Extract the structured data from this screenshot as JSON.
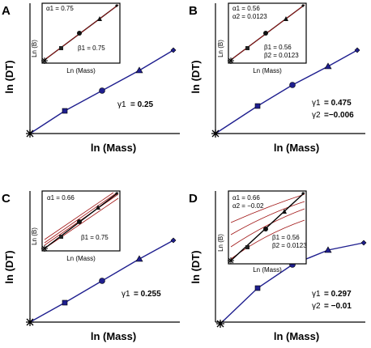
{
  "colors": {
    "main_line": "#1f1f8f",
    "inset_line": "#000000",
    "inset_fan": "#a01414",
    "axis": "#000000"
  },
  "panels": [
    {
      "id": "A",
      "letter": "A",
      "ylabel": "ln (DT)",
      "xlabel": "ln (Mass)",
      "gamma1_sym": "γ1",
      "gamma1_val": "=  0.25",
      "gamma2_sym": "",
      "gamma2_val": "",
      "inset": {
        "ylabel": "Ln (B)",
        "xlabel": "Ln (Mass)",
        "alpha1": "α1 = 0.75",
        "alpha2": "",
        "beta1": "β1 =  0.75",
        "beta2": "",
        "fan": "none"
      }
    },
    {
      "id": "B",
      "letter": "B",
      "ylabel": "ln (DT)",
      "xlabel": "ln (Mass)",
      "gamma1_sym": "γ1",
      "gamma1_val": "=  0.475",
      "gamma2_sym": "γ2",
      "gamma2_val": "=−0.006",
      "inset": {
        "ylabel": "Ln (B)",
        "xlabel": "Ln (Mass)",
        "alpha1": "α1 =  0.56",
        "alpha2": "α2 =  0.0123",
        "beta1": "β1 =  0.56",
        "beta2": "β2 =  0.0123",
        "fan": "none"
      }
    },
    {
      "id": "C",
      "letter": "C",
      "ylabel": "ln (DT)",
      "xlabel": "ln (Mass)",
      "gamma1_sym": "γ1",
      "gamma1_val": "=  0.255",
      "gamma2_sym": "",
      "gamma2_val": "",
      "inset": {
        "ylabel": "Ln (B)",
        "xlabel": "Ln (Mass)",
        "alpha1": "α1 = 0.66",
        "alpha2": "",
        "beta1": "β1 =  0.75",
        "beta2": "",
        "fan": "parallel"
      }
    },
    {
      "id": "D",
      "letter": "D",
      "ylabel": "ln (DT)",
      "xlabel": "ln (Mass)",
      "gamma1_sym": "γ1",
      "gamma1_val": "=  0.297",
      "gamma2_sym": "γ2",
      "gamma2_val": "=  −0.01",
      "inset": {
        "ylabel": "Ln (B)",
        "xlabel": "Ln (Mass)",
        "alpha1": "α1 = 0.66",
        "alpha2": "α2 = −0.02",
        "beta1": "β1 =  0.56",
        "beta2": "β2 =  0.0123",
        "fan": "curved"
      }
    }
  ]
}
